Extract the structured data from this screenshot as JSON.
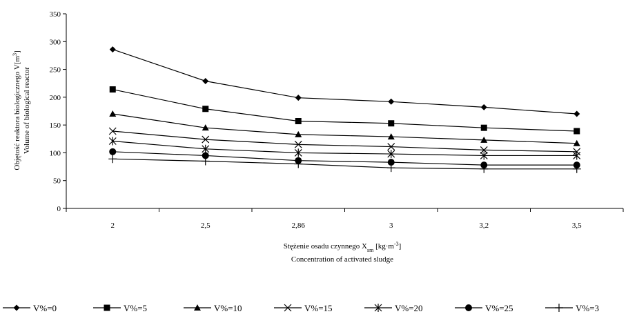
{
  "chart_data": {
    "type": "line",
    "categories": [
      "2",
      "2,5",
      "2,86",
      "3",
      "3,2",
      "3,5"
    ],
    "xlabel_line1": "Stężenie osadu czynnego X",
    "xlabel_sub": "sm",
    "xlabel_unit": " [kg·m",
    "xlabel_exp": "-3",
    "xlabel_close": "]",
    "xlabel_line2": "Concentration of activated sludge",
    "ylabel_line1": "Objętość reaktora biologicznego V[m",
    "ylabel_exp": "3",
    "ylabel_close": "]",
    "ylabel_line2": "Volume of biological reactor",
    "ylim": [
      0,
      350
    ],
    "yticks": [
      0,
      50,
      100,
      150,
      200,
      250,
      300,
      350
    ],
    "legend_position": "bottom",
    "series": [
      {
        "name": "V%=0",
        "marker": "diamond",
        "values": [
          286,
          229,
          199,
          192,
          182,
          170
        ]
      },
      {
        "name": "V%=5",
        "marker": "square",
        "values": [
          214,
          179,
          157,
          153,
          145,
          139
        ]
      },
      {
        "name": "V%=10",
        "marker": "triangle",
        "values": [
          170,
          145,
          133,
          129,
          123,
          117
        ]
      },
      {
        "name": "V%=15",
        "marker": "x",
        "values": [
          139,
          124,
          115,
          111,
          105,
          102
        ]
      },
      {
        "name": "V%=20",
        "marker": "star",
        "values": [
          121,
          107,
          100,
          98,
          95,
          95
        ]
      },
      {
        "name": "V%=25",
        "marker": "circle",
        "values": [
          102,
          95,
          86,
          83,
          78,
          78
        ]
      },
      {
        "name": "V%=3",
        "marker": "plus",
        "values": [
          89,
          85,
          80,
          73,
          71,
          71
        ]
      }
    ]
  }
}
